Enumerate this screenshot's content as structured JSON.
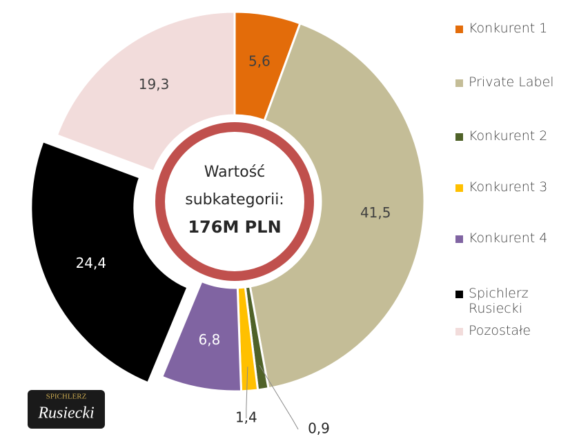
{
  "chart_data": {
    "type": "donut",
    "categories": [
      "Konkurent 1",
      "Private Label",
      "Konkurent 2",
      "Konkurent 3",
      "Konkurent 4",
      "Spichlerz Rusiecki",
      "Pozostałe"
    ],
    "values": [
      5.6,
      41.5,
      0.9,
      1.4,
      6.8,
      24.4,
      19.3
    ],
    "value_labels": [
      "5,6",
      "41,5",
      "0,9",
      "1,4",
      "6,8",
      "24,4",
      "19,3"
    ],
    "colors": [
      "#e36c0a",
      "#c4bd97",
      "#4f6228",
      "#ffc000",
      "#8064a2",
      "#000000",
      "#f2dcdb"
    ],
    "center_text": [
      "Wartość",
      "subkategorii:",
      "176M PLN"
    ],
    "logo": [
      "SPICHLERZ",
      "Rusiecki"
    ],
    "legend": "right"
  }
}
